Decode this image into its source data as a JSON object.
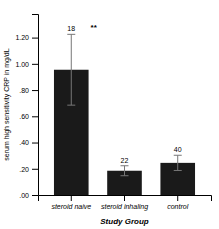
{
  "chart_data": {
    "type": "bar",
    "categories": [
      "steroid naive",
      "steroid inhaling",
      "control"
    ],
    "values": [
      0.955,
      0.185,
      0.245
    ],
    "errors": [
      0.27,
      0.038,
      0.058
    ],
    "n_labels": [
      "18",
      "22",
      "40"
    ],
    "annotations": [
      {
        "text": "**",
        "category": "steroid naive"
      }
    ],
    "color": "#1a1a1a",
    "xlabel": "Study Group",
    "ylabel": "serum high sensitivity CRP in mg/dL",
    "ylim": [
      0.0,
      1.38
    ],
    "yticks": [
      {
        "value": 0.0,
        "label": ".00"
      },
      {
        "value": 0.2,
        "label": ".20"
      },
      {
        "value": 0.4,
        "label": ".40"
      },
      {
        "value": 0.6,
        "label": ".60"
      },
      {
        "value": 0.8,
        "label": ".80"
      },
      {
        "value": 1.0,
        "label": "1.00"
      },
      {
        "value": 1.2,
        "label": "1.20"
      }
    ]
  }
}
